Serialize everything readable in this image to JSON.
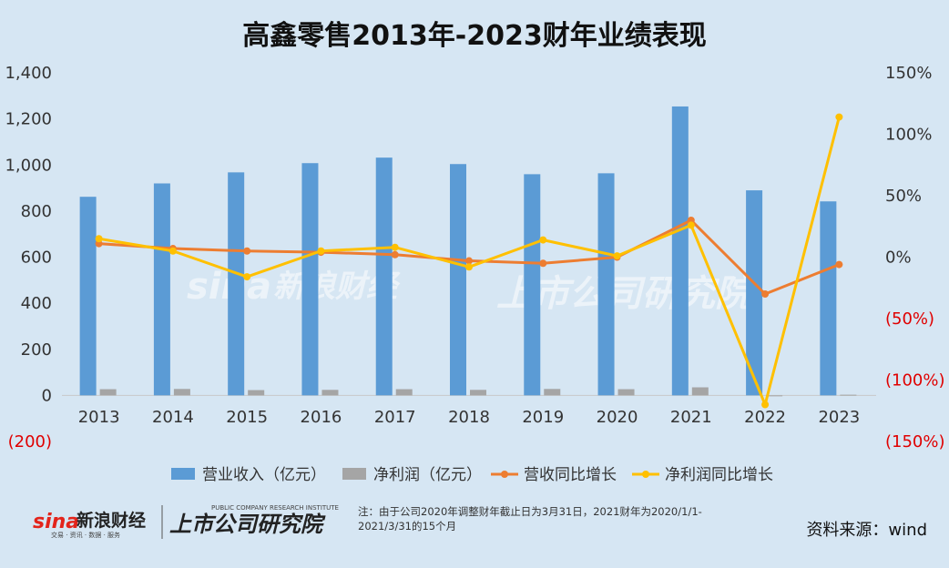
{
  "chart_data": {
    "type": "bar",
    "title": "高鑫零售2013年-2023财年业绩表现",
    "categories": [
      "2013",
      "2014",
      "2015",
      "2016",
      "2017",
      "2018",
      "2019",
      "2020",
      "2021",
      "2022",
      "2023"
    ],
    "series": [
      {
        "name": "营业收入（亿元）",
        "type": "bar",
        "axis": "left",
        "color": "#5b9bd5",
        "values": [
          862,
          920,
          968,
          1008,
          1032,
          1004,
          960,
          964,
          1254,
          890,
          842
        ]
      },
      {
        "name": "净利润（亿元）",
        "type": "bar",
        "axis": "left",
        "color": "#a5a5a5",
        "values": [
          27,
          28,
          23,
          24,
          27,
          24,
          28,
          27,
          35,
          -3,
          3
        ]
      },
      {
        "name": "营收同比增长",
        "type": "line",
        "axis": "right",
        "color": "#ed7d31",
        "values": [
          11,
          7,
          5,
          4,
          2,
          -3,
          -5,
          0,
          30,
          -30,
          -6
        ]
      },
      {
        "name": "净利润同比增长",
        "type": "line",
        "axis": "right",
        "color": "#ffc000",
        "values": [
          15,
          5,
          -16,
          5,
          8,
          -8,
          14,
          1,
          26,
          -120,
          114
        ]
      }
    ],
    "left_axis": {
      "min": -200,
      "max": 1400,
      "ticks": [
        "(200)",
        "0",
        "200",
        "400",
        "600",
        "800",
        "1,000",
        "1,200",
        "1,400"
      ]
    },
    "right_axis": {
      "min": -150,
      "max": 150,
      "ticks": [
        "(150%)",
        "(100%)",
        "(50%)",
        "0%",
        "50%",
        "100%",
        "150%"
      ]
    },
    "legend_position": "bottom",
    "grid": false
  },
  "footer": {
    "note_line1": "注：由于公司2020年调整财年截止日为3月31日，2021财年为2020/1/1-",
    "note_line2": "2021/3/31的15个月",
    "source": "资料来源：wind"
  },
  "branding": {
    "sina_logo": "sina",
    "sina_cn": "新浪财经",
    "sina_sub": "交易 · 资讯 · 数据 · 服务",
    "research_logo": "上市公司研究院",
    "research_sub": "PUBLIC COMPANY RESEARCH INSTITUTE",
    "colors": {
      "neg_tick": "#e00000",
      "sina_red": "#e3241b"
    }
  }
}
